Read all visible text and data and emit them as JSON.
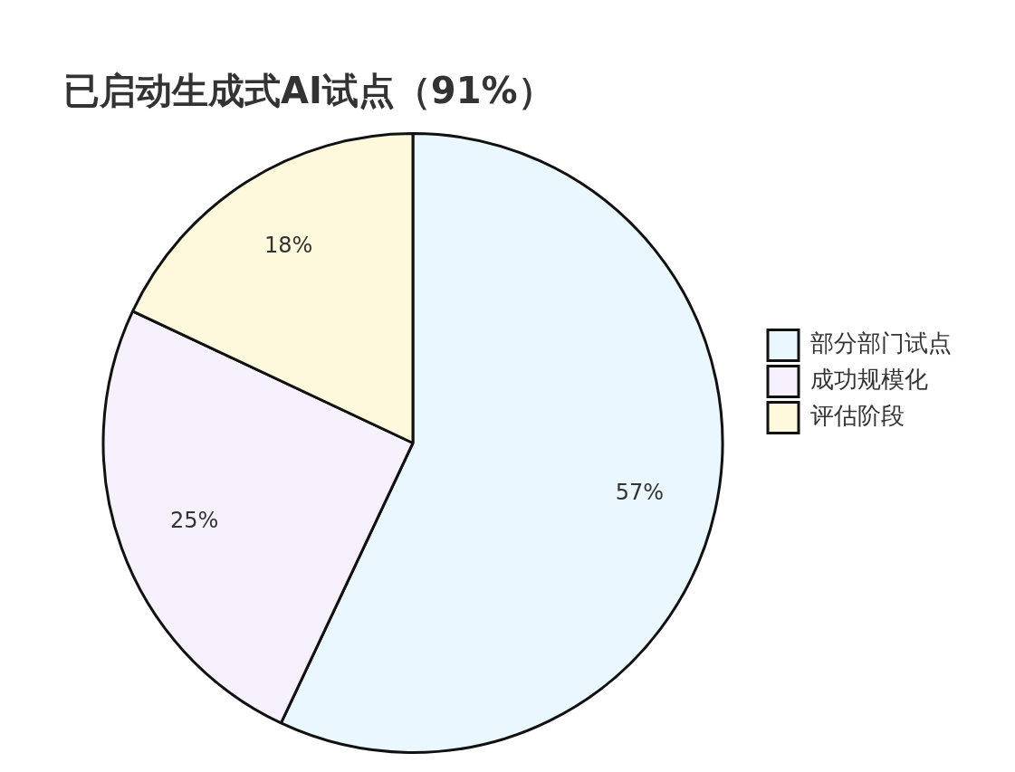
{
  "chart_data": {
    "type": "pie",
    "title": "已启动生成式AI试点（91%）",
    "categories": [
      "部分部门试点",
      "成功规模化",
      "评估阶段"
    ],
    "values": [
      57,
      25,
      18
    ],
    "colors": [
      "#eaf7fe",
      "#f7f1fd",
      "#fef8dc"
    ],
    "value_labels": [
      "57%",
      "25%",
      "18%"
    ],
    "legend": "right"
  }
}
